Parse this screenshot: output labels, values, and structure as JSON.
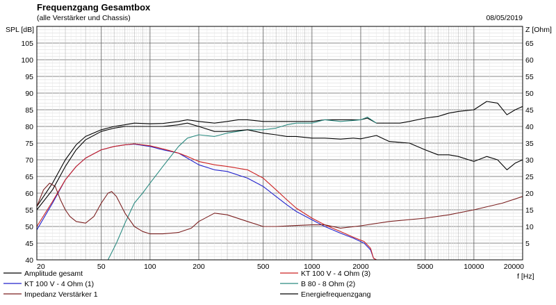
{
  "header": {
    "title": "Frequenzgang Gesamtbox",
    "subtitle": "(alle Verstärker und Chassis)",
    "date": "08/05/2019"
  },
  "chart_data": {
    "type": "line",
    "title": "Frequenzgang Gesamtbox",
    "subtitle": "(alle Verstärker und Chassis)",
    "xlabel": "f [Hz]",
    "ylabel_left": "SPL [dB]",
    "ylabel_right": "Z [Ohm]",
    "x_scale": "log",
    "xlim": [
      20,
      20000
    ],
    "ylim_left": [
      40,
      110
    ],
    "ylim_right": [
      0,
      70
    ],
    "grid": true,
    "x_tick_labels": [
      {
        "value": 20,
        "label": "20"
      },
      {
        "value": 50,
        "label": "50"
      },
      {
        "value": 100,
        "label": "100"
      },
      {
        "value": 200,
        "label": "200"
      },
      {
        "value": 500,
        "label": "500"
      },
      {
        "value": 1000,
        "label": "1000"
      },
      {
        "value": 2000,
        "label": "2000"
      },
      {
        "value": 5000,
        "label": "5000"
      },
      {
        "value": 10000,
        "label": "10000"
      },
      {
        "value": 20000,
        "label": "20000"
      }
    ],
    "y_left_ticks": [
      40,
      45,
      50,
      55,
      60,
      65,
      70,
      75,
      80,
      85,
      90,
      95,
      100,
      105
    ],
    "y_right_ticks": [
      5,
      10,
      15,
      20,
      25,
      30,
      35,
      40,
      45,
      50,
      55,
      60,
      65
    ],
    "legend_position": "bottom",
    "series": [
      {
        "name": "Amplitude gesamt",
        "color": "#000000",
        "axis": "left",
        "points": [
          [
            20,
            56
          ],
          [
            25,
            63
          ],
          [
            30,
            70
          ],
          [
            35,
            74.5
          ],
          [
            40,
            77
          ],
          [
            50,
            79
          ],
          [
            60,
            80
          ],
          [
            70,
            80.5
          ],
          [
            80,
            81
          ],
          [
            100,
            80.8
          ],
          [
            120,
            80.9
          ],
          [
            150,
            81.5
          ],
          [
            170,
            82
          ],
          [
            200,
            81.5
          ],
          [
            250,
            81
          ],
          [
            300,
            81.5
          ],
          [
            350,
            82
          ],
          [
            400,
            82
          ],
          [
            500,
            81.5
          ],
          [
            600,
            81.5
          ],
          [
            700,
            81.5
          ],
          [
            800,
            81.5
          ],
          [
            1000,
            81.5
          ],
          [
            1200,
            82
          ],
          [
            1500,
            82
          ],
          [
            1800,
            82
          ],
          [
            2000,
            82
          ],
          [
            2200,
            82.5
          ],
          [
            2500,
            81
          ],
          [
            3000,
            81
          ],
          [
            3500,
            81
          ],
          [
            4000,
            81.5
          ],
          [
            5000,
            82.5
          ],
          [
            6000,
            83
          ],
          [
            7000,
            84
          ],
          [
            8000,
            84.5
          ],
          [
            10000,
            85
          ],
          [
            12000,
            87.5
          ],
          [
            14000,
            87
          ],
          [
            16000,
            83.5
          ],
          [
            18000,
            85
          ],
          [
            20000,
            86
          ]
        ]
      },
      {
        "name": "KT 100 V - 4 Ohm (1)",
        "color": "#2222cc",
        "axis": "left",
        "points": [
          [
            20,
            49
          ],
          [
            25,
            57
          ],
          [
            30,
            64
          ],
          [
            35,
            68
          ],
          [
            40,
            70.5
          ],
          [
            50,
            73
          ],
          [
            60,
            74
          ],
          [
            70,
            74.5
          ],
          [
            80,
            74.7
          ],
          [
            100,
            74
          ],
          [
            120,
            73
          ],
          [
            150,
            72
          ],
          [
            170,
            70.5
          ],
          [
            200,
            68.5
          ],
          [
            250,
            67
          ],
          [
            300,
            66.5
          ],
          [
            400,
            64.5
          ],
          [
            500,
            62
          ],
          [
            600,
            59
          ],
          [
            700,
            56.5
          ],
          [
            800,
            54.5
          ],
          [
            1000,
            52
          ],
          [
            1200,
            50
          ],
          [
            1500,
            48
          ],
          [
            1800,
            46.5
          ],
          [
            2100,
            45
          ],
          [
            2300,
            43
          ],
          [
            2400,
            40.5
          ],
          [
            2500,
            40
          ],
          [
            20000,
            40
          ]
        ]
      },
      {
        "name": "KT 100 V - 4 Ohm (3)",
        "color": "#cc2222",
        "axis": "left",
        "points": [
          [
            20,
            50
          ],
          [
            25,
            57.5
          ],
          [
            30,
            64
          ],
          [
            35,
            68
          ],
          [
            40,
            70.5
          ],
          [
            50,
            73
          ],
          [
            60,
            74
          ],
          [
            70,
            74.5
          ],
          [
            80,
            74.8
          ],
          [
            100,
            74.2
          ],
          [
            120,
            73.3
          ],
          [
            150,
            72
          ],
          [
            170,
            71
          ],
          [
            200,
            69.5
          ],
          [
            250,
            68.5
          ],
          [
            300,
            68
          ],
          [
            400,
            67
          ],
          [
            500,
            64.5
          ],
          [
            600,
            61
          ],
          [
            700,
            58
          ],
          [
            800,
            55.5
          ],
          [
            1000,
            52.5
          ],
          [
            1200,
            50.5
          ],
          [
            1500,
            48.5
          ],
          [
            1800,
            46.8
          ],
          [
            2100,
            45.5
          ],
          [
            2300,
            43.5
          ],
          [
            2400,
            40.5
          ],
          [
            2500,
            40
          ],
          [
            20000,
            40
          ]
        ]
      },
      {
        "name": "B 80 - 8 Ohm (2)",
        "color": "#2a8a80",
        "axis": "left",
        "points": [
          [
            20,
            40
          ],
          [
            55,
            40
          ],
          [
            62,
            45
          ],
          [
            70,
            51
          ],
          [
            80,
            57
          ],
          [
            90,
            60
          ],
          [
            100,
            63
          ],
          [
            120,
            68
          ],
          [
            150,
            74
          ],
          [
            170,
            76.5
          ],
          [
            200,
            77.5
          ],
          [
            250,
            77
          ],
          [
            300,
            78
          ],
          [
            400,
            79
          ],
          [
            500,
            79
          ],
          [
            600,
            79.5
          ],
          [
            700,
            80.5
          ],
          [
            800,
            81
          ],
          [
            1000,
            81
          ],
          [
            1200,
            82
          ],
          [
            1500,
            81.5
          ],
          [
            1800,
            81.8
          ],
          [
            2000,
            82
          ],
          [
            2200,
            82.8
          ],
          [
            2500,
            81
          ]
        ]
      },
      {
        "name": "Impedanz Verstärker 1",
        "color": "#7a1f1f",
        "axis": "right",
        "points": [
          [
            20,
            16
          ],
          [
            22,
            21
          ],
          [
            24,
            23
          ],
          [
            26,
            22
          ],
          [
            28,
            18
          ],
          [
            30,
            15
          ],
          [
            32,
            13
          ],
          [
            35,
            11.5
          ],
          [
            40,
            11
          ],
          [
            45,
            13
          ],
          [
            50,
            17
          ],
          [
            55,
            20
          ],
          [
            58,
            20.5
          ],
          [
            62,
            19
          ],
          [
            70,
            14
          ],
          [
            80,
            10
          ],
          [
            90,
            8.5
          ],
          [
            100,
            7.8
          ],
          [
            120,
            7.8
          ],
          [
            150,
            8.2
          ],
          [
            180,
            9.5
          ],
          [
            200,
            11.5
          ],
          [
            250,
            14
          ],
          [
            300,
            13.5
          ],
          [
            400,
            11.5
          ],
          [
            500,
            10
          ],
          [
            600,
            10
          ],
          [
            800,
            10.3
          ],
          [
            1000,
            10.5
          ],
          [
            1200,
            10.5
          ],
          [
            1500,
            9.5
          ],
          [
            2000,
            10.2
          ],
          [
            3000,
            11.5
          ],
          [
            5000,
            12.5
          ],
          [
            7000,
            13.5
          ],
          [
            10000,
            15
          ],
          [
            15000,
            17
          ],
          [
            20000,
            19
          ]
        ]
      },
      {
        "name": "Energiefrequenzgang",
        "color": "#000000",
        "axis": "left",
        "points": [
          [
            20,
            55
          ],
          [
            25,
            61
          ],
          [
            30,
            68
          ],
          [
            35,
            73
          ],
          [
            40,
            76
          ],
          [
            50,
            78.5
          ],
          [
            60,
            79.5
          ],
          [
            70,
            80
          ],
          [
            80,
            80
          ],
          [
            100,
            80
          ],
          [
            120,
            80
          ],
          [
            150,
            80.5
          ],
          [
            170,
            81
          ],
          [
            200,
            80
          ],
          [
            250,
            78.5
          ],
          [
            300,
            78.5
          ],
          [
            400,
            79
          ],
          [
            500,
            78
          ],
          [
            600,
            77.5
          ],
          [
            700,
            77
          ],
          [
            800,
            77
          ],
          [
            1000,
            76.5
          ],
          [
            1200,
            76.5
          ],
          [
            1500,
            76.2
          ],
          [
            1800,
            76.5
          ],
          [
            2000,
            76.3
          ],
          [
            2500,
            77.3
          ],
          [
            3000,
            75.5
          ],
          [
            4000,
            75
          ],
          [
            5000,
            73
          ],
          [
            6000,
            71.5
          ],
          [
            7000,
            71.5
          ],
          [
            8000,
            71
          ],
          [
            10000,
            69.5
          ],
          [
            12000,
            71
          ],
          [
            14000,
            70
          ],
          [
            16000,
            67
          ],
          [
            18000,
            69
          ],
          [
            20000,
            70
          ]
        ]
      }
    ]
  }
}
